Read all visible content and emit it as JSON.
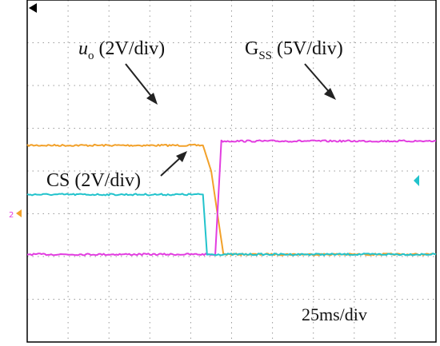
{
  "chart_data": {
    "type": "line",
    "title": "",
    "xlabel": "",
    "ylabel": "",
    "grid": true,
    "x_divisions": 10,
    "y_divisions": 8,
    "timebase_label": "25ms/div",
    "colors": {
      "grid": "#9a9a9a",
      "frame": "#000000",
      "ground_marker": "#1ab7c2"
    },
    "series": [
      {
        "label_main": "u",
        "label_sub": "o",
        "label_rest": " (2V/div)",
        "color": "#f2a12a",
        "x": [
          0,
          4.3,
          4.5,
          4.8,
          10
        ],
        "y": [
          4.6,
          4.6,
          4.0,
          2.05,
          2.05
        ]
      },
      {
        "label_main": "G",
        "label_sub": "SS",
        "label_rest": " (5V/div)",
        "color": "#e23de0",
        "x": [
          0,
          4.6,
          4.75,
          10
        ],
        "y": [
          2.05,
          2.05,
          4.7,
          4.7
        ]
      },
      {
        "label_main": "CS",
        "label_sub": "",
        "label_rest": " (2V/div)",
        "color": "#22c3cc",
        "x": [
          0,
          4.3,
          4.4,
          10
        ],
        "y": [
          3.45,
          3.45,
          2.05,
          2.05
        ]
      }
    ]
  }
}
